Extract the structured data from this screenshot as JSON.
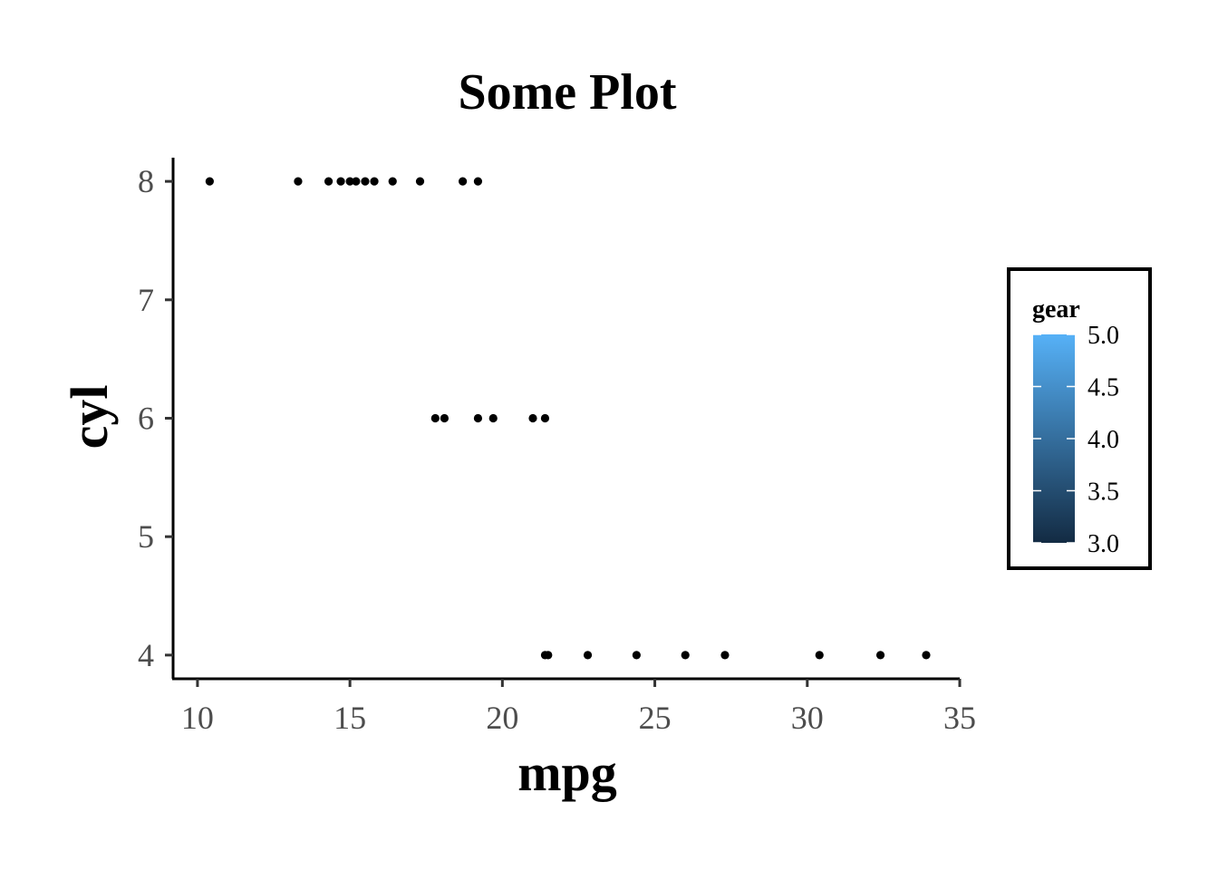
{
  "chart_data": {
    "type": "scatter",
    "title": "Some Plot",
    "xlabel": "mpg",
    "ylabel": "cyl",
    "xlim": [
      9.2,
      35
    ],
    "ylim": [
      3.8,
      8.2
    ],
    "x_ticks": [
      "10",
      "15",
      "20",
      "25",
      "30",
      "35"
    ],
    "y_ticks": [
      "4",
      "5",
      "6",
      "7",
      "8"
    ],
    "grid": false,
    "point_color": "#000000",
    "points": [
      {
        "x": 10.4,
        "y": 8
      },
      {
        "x": 13.3,
        "y": 8
      },
      {
        "x": 14.3,
        "y": 8
      },
      {
        "x": 14.7,
        "y": 8
      },
      {
        "x": 15.0,
        "y": 8
      },
      {
        "x": 15.2,
        "y": 8
      },
      {
        "x": 15.5,
        "y": 8
      },
      {
        "x": 15.8,
        "y": 8
      },
      {
        "x": 16.4,
        "y": 8
      },
      {
        "x": 17.3,
        "y": 8
      },
      {
        "x": 18.7,
        "y": 8
      },
      {
        "x": 19.2,
        "y": 8
      },
      {
        "x": 17.8,
        "y": 6
      },
      {
        "x": 18.1,
        "y": 6
      },
      {
        "x": 19.2,
        "y": 6
      },
      {
        "x": 19.7,
        "y": 6
      },
      {
        "x": 21.0,
        "y": 6
      },
      {
        "x": 21.4,
        "y": 6
      },
      {
        "x": 21.4,
        "y": 4
      },
      {
        "x": 21.5,
        "y": 4
      },
      {
        "x": 22.8,
        "y": 4
      },
      {
        "x": 24.4,
        "y": 4
      },
      {
        "x": 26.0,
        "y": 4
      },
      {
        "x": 27.3,
        "y": 4
      },
      {
        "x": 30.4,
        "y": 4
      },
      {
        "x": 32.4,
        "y": 4
      },
      {
        "x": 33.9,
        "y": 4
      }
    ],
    "legend": {
      "title": "gear",
      "placement": "right",
      "range": [
        3.0,
        5.0
      ],
      "labels": [
        "5.0",
        "4.5",
        "4.0",
        "3.5",
        "3.0"
      ],
      "color_low": "#132b43",
      "color_high": "#56b1f7"
    }
  }
}
